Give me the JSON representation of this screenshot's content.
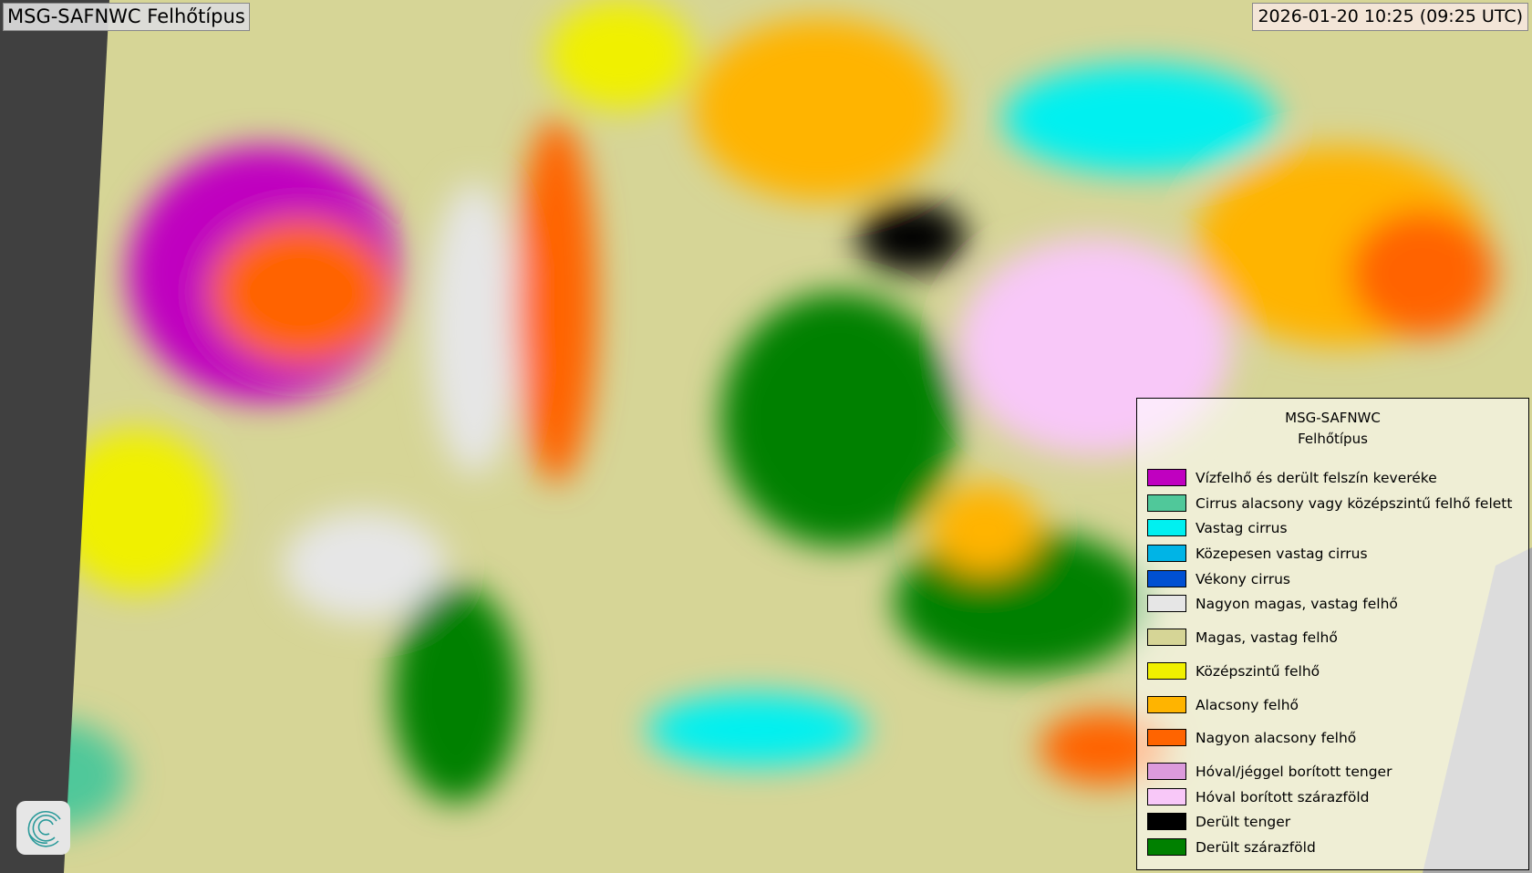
{
  "header": {
    "title": "MSG-SAFNWC Felhőtípus",
    "timestamp": "2026-01-20 10:25 (09:25 UTC)"
  },
  "legend": {
    "title_line1": "MSG-SAFNWC",
    "title_line2": "Felhőtípus",
    "items": [
      {
        "label": "Vízfelhő és derült felszín keveréke",
        "color": "#c000c0"
      },
      {
        "label": "Cirrus alacsony vagy középszintű felhő felett",
        "color": "#50c89a"
      },
      {
        "label": "Vastag cirrus",
        "color": "#00f0f0"
      },
      {
        "label": "Közepesen vastag cirrus",
        "color": "#00b4e6"
      },
      {
        "label": "Vékony cirrus",
        "color": "#0050d2"
      },
      {
        "label": "Nagyon magas, vastag felhő",
        "color": "#e6e6e6"
      },
      {
        "label": "Magas, vastag felhő",
        "color": "#d6d596"
      },
      {
        "label": "Középszintű felhő",
        "color": "#f0f000"
      },
      {
        "label": "Alacsony felhő",
        "color": "#ffb400"
      },
      {
        "label": "Nagyon alacsony felhő",
        "color": "#ff6400"
      },
      {
        "label": "Hóval/jéggel borított tenger",
        "color": "#dc9bdc"
      },
      {
        "label": "Hóval borított szárazföld",
        "color": "#f8c8f8"
      },
      {
        "label": "Derült tenger",
        "color": "#000000"
      },
      {
        "label": "Derült szárazföld",
        "color": "#008000"
      }
    ]
  },
  "logo": {
    "icon": "spiral-logo-icon"
  }
}
